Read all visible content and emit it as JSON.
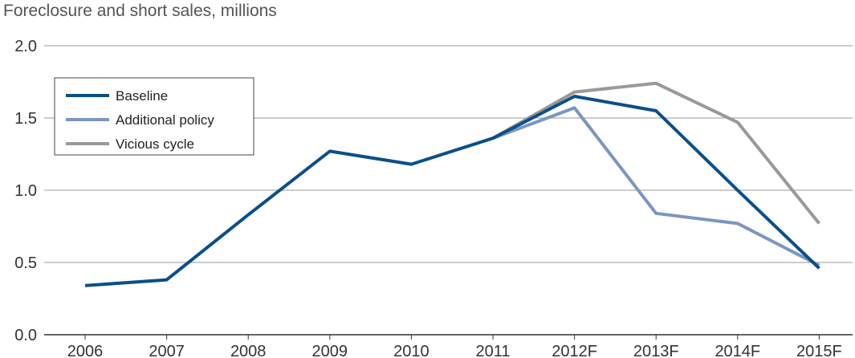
{
  "chart_data": {
    "type": "line",
    "title": "Foreclosure and short sales, millions",
    "xlabel": "",
    "ylabel": "",
    "categories": [
      "2006",
      "2007",
      "2008",
      "2009",
      "2010",
      "2011",
      "2012F",
      "2013F",
      "2014F",
      "2015F"
    ],
    "ylim": [
      0,
      2.0
    ],
    "yticks": [
      "0.0",
      "0.5",
      "1.0",
      "1.5",
      "2.0"
    ],
    "grid": "horizontal",
    "legend_position": "top-left",
    "series": [
      {
        "name": "Vicious cycle",
        "color": "#999999",
        "values": [
          null,
          null,
          null,
          null,
          null,
          1.36,
          1.68,
          1.74,
          1.47,
          0.77
        ]
      },
      {
        "name": "Additional policy",
        "color": "#7b96c2",
        "values": [
          null,
          null,
          null,
          null,
          null,
          1.36,
          1.57,
          0.84,
          0.77,
          0.48
        ]
      },
      {
        "name": "Baseline",
        "color": "#0b4f8a",
        "values": [
          0.34,
          0.38,
          0.83,
          1.27,
          1.18,
          1.36,
          1.65,
          1.55,
          1.0,
          0.46
        ]
      }
    ],
    "legend_order": [
      "Baseline",
      "Additional policy",
      "Vicious cycle"
    ]
  }
}
